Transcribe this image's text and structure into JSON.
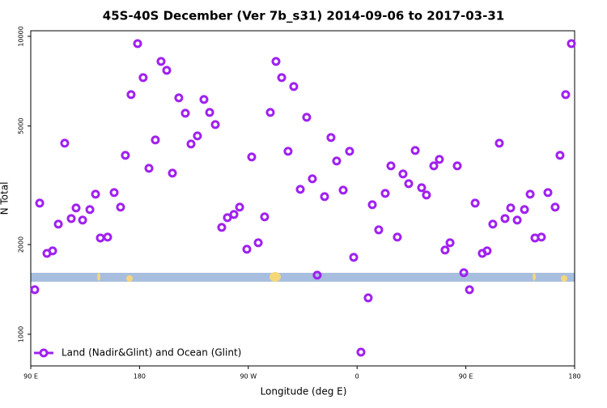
{
  "chart_data": {
    "type": "scatter",
    "title": "45S-40S December (Ver 7b_s31)   2014-09-06 to 2017-03-31",
    "x_label": "Longitude (deg E)",
    "y_label": "N Total",
    "log_y": true,
    "legend": "bottomleft",
    "xlim": [
      90,
      540
    ],
    "xticks": [
      {
        "value": 90,
        "label": "90 E"
      },
      {
        "value": 180,
        "label": "180"
      },
      {
        "value": 270,
        "label": "90 W"
      },
      {
        "value": 360,
        "label": "0"
      },
      {
        "value": 450,
        "label": "90 E"
      },
      {
        "value": 540,
        "label": "180"
      }
    ],
    "ylim": [
      783,
      10440
    ],
    "yticks": [
      1000,
      2000,
      5000,
      10000
    ],
    "series": [
      {
        "name": "Land (Nadir&Glint) and Ocean (Glint)",
        "color": "#a020f0",
        "x": [
          93.3,
          97.4,
          103.4,
          108.1,
          112.8,
          118.1,
          123.5,
          127.5,
          132.9,
          138.9,
          143.6,
          147.6,
          153.6,
          159.0,
          164.3,
          168.3,
          173.0,
          178.4,
          183.0,
          187.8,
          193.1,
          197.8,
          202.5,
          207.2,
          212.5,
          217.9,
          222.6,
          227.9,
          233.3,
          238.0,
          242.7,
          248.0,
          252.7,
          258.1,
          262.8,
          268.8,
          272.8,
          278.2,
          283.5,
          288.2,
          292.9,
          297.6,
          302.9,
          307.6,
          313.0,
          318.3,
          323.0,
          327.0,
          333.1,
          338.4,
          343.1,
          348.5,
          353.8,
          357.2,
          363.2,
          369.2,
          372.6,
          377.9,
          383.3,
          388.0,
          393.3,
          398.0,
          402.7,
          408.1,
          413.4,
          417.4,
          423.5,
          428.1,
          432.8,
          436.9,
          442.9,
          448.3,
          453.0,
          457.7,
          463.6,
          467.6,
          472.3,
          477.7,
          482.4,
          487.1,
          492.5,
          498.5,
          503.2,
          507.2,
          512.5,
          517.9,
          523.9,
          527.9,
          532.6,
          537.3
        ],
        "values": [
          1411,
          2755,
          1869,
          1905,
          2342,
          4378,
          2446,
          2654,
          2416,
          2621,
          2952,
          2105,
          2119,
          2989,
          2671,
          3986,
          6374,
          9452,
          7267,
          3607,
          4489,
          8238,
          7688,
          3474,
          6216,
          5519,
          4351,
          4632,
          6138,
          5554,
          5055,
          2284,
          2462,
          2524,
          2671,
          1929,
          3937,
          2028,
          2478,
          5554,
          8238,
          7267,
          4113,
          6785,
          3065,
          5349,
          3325,
          1579,
          2897,
          4574,
          3815,
          3046,
          4113,
          1812,
          871,
          1325,
          2721,
          2241,
          2970,
          3675,
          2119,
          3452,
          3202,
          4139,
          3103,
          2934,
          3675,
          3864,
          1917,
          2028,
          3675,
          1609,
          1411,
          2755,
          1869,
          1905,
          2342,
          4378,
          2446,
          2654,
          2416,
          2621,
          2952,
          2105,
          2119,
          2989,
          2671,
          3986,
          6374,
          9452
        ]
      }
    ]
  }
}
